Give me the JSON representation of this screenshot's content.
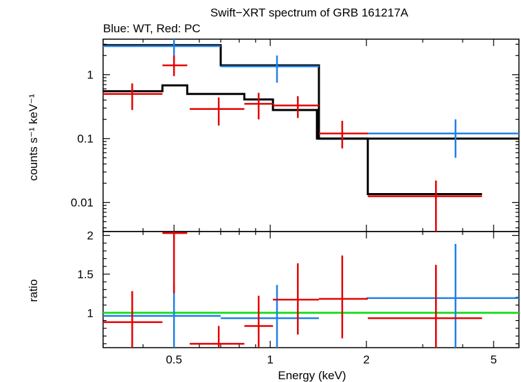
{
  "title": "Swift−XRT spectrum of GRB 161217A",
  "subtitle": "Blue: WT, Red: PC",
  "colors": {
    "wt": "#1f7fe6",
    "pc": "#e60000",
    "model": "#000000",
    "unity": "#22dd22",
    "frame": "#000000"
  },
  "chart_data": [
    {
      "type": "scatter",
      "panel": "spectrum",
      "ylabel": "counts s⁻¹ keV⁻¹",
      "xscale": "log",
      "yscale": "log",
      "xlim": [
        0.3,
        6.0
      ],
      "ylim": [
        0.0035,
        3.6
      ],
      "ytick_labels": [
        {
          "v": 0.01,
          "label": "0.01"
        },
        {
          "v": 0.1,
          "label": "0.1"
        },
        {
          "v": 1,
          "label": "1"
        }
      ],
      "series": [
        {
          "key": "wt",
          "points": [
            {
              "x": 0.5,
              "xlo": 0.3,
              "xhi": 0.7,
              "y": 2.8,
              "ylo": 1.8,
              "yhi": 4.0
            },
            {
              "x": 1.05,
              "xlo": 0.7,
              "xhi": 1.42,
              "y": 1.35,
              "ylo": 0.75,
              "yhi": 2.0
            },
            {
              "x": 3.8,
              "xlo": 2.0,
              "xhi": 6.0,
              "y": 0.12,
              "ylo": 0.05,
              "yhi": 0.2
            }
          ]
        },
        {
          "key": "pc",
          "points": [
            {
              "x": 0.37,
              "xlo": 0.3,
              "xhi": 0.46,
              "y": 0.5,
              "ylo": 0.28,
              "yhi": 0.73
            },
            {
              "x": 0.5,
              "xlo": 0.46,
              "xhi": 0.55,
              "y": 1.4,
              "ylo": 0.95,
              "yhi": 2.0
            },
            {
              "x": 0.69,
              "xlo": 0.56,
              "xhi": 0.83,
              "y": 0.29,
              "ylo": 0.16,
              "yhi": 0.44
            },
            {
              "x": 0.92,
              "xlo": 0.83,
              "xhi": 1.02,
              "y": 0.35,
              "ylo": 0.2,
              "yhi": 0.52
            },
            {
              "x": 1.22,
              "xlo": 1.02,
              "xhi": 1.42,
              "y": 0.33,
              "ylo": 0.21,
              "yhi": 0.46
            },
            {
              "x": 1.68,
              "xlo": 1.42,
              "xhi": 2.02,
              "y": 0.12,
              "ylo": 0.07,
              "yhi": 0.19
            },
            {
              "x": 3.3,
              "xlo": 2.02,
              "xhi": 4.6,
              "y": 0.0125,
              "ylo": 0.0035,
              "yhi": 0.022
            }
          ]
        }
      ],
      "models": [
        {
          "key": "wt",
          "steps": [
            [
              0.3,
              2.9
            ],
            [
              0.7,
              2.9
            ],
            [
              0.7,
              1.4
            ],
            [
              1.42,
              1.4
            ],
            [
              1.42,
              0.1
            ],
            [
              2.02,
              0.1
            ],
            [
              2.02,
              0.1
            ],
            [
              6.0,
              0.1
            ]
          ]
        },
        {
          "key": "pc",
          "steps": [
            [
              0.3,
              0.55
            ],
            [
              0.46,
              0.55
            ],
            [
              0.46,
              0.68
            ],
            [
              0.55,
              0.68
            ],
            [
              0.55,
              0.5
            ],
            [
              0.83,
              0.5
            ],
            [
              0.83,
              0.41
            ],
            [
              1.02,
              0.41
            ],
            [
              1.02,
              0.28
            ],
            [
              1.4,
              0.28
            ],
            [
              1.4,
              0.1
            ],
            [
              2.02,
              0.1
            ],
            [
              2.02,
              0.0135
            ],
            [
              4.6,
              0.0135
            ]
          ]
        }
      ]
    },
    {
      "type": "scatter",
      "panel": "ratio",
      "ylabel": "ratio",
      "xlabel": "Energy (keV)",
      "xscale": "log",
      "yscale": "linear",
      "xlim": [
        0.3,
        6.0
      ],
      "ylim": [
        0.55,
        2.05
      ],
      "xtick_labels": [
        {
          "v": 0.5,
          "label": "0.5"
        },
        {
          "v": 1,
          "label": "1"
        },
        {
          "v": 2,
          "label": "2"
        },
        {
          "v": 5,
          "label": "5"
        }
      ],
      "ytick_labels": [
        {
          "v": 1,
          "label": "1"
        },
        {
          "v": 1.5,
          "label": "1.5"
        },
        {
          "v": 2,
          "label": "2"
        }
      ],
      "unity": 1.0,
      "series": [
        {
          "key": "wt",
          "points": [
            {
              "x": 0.5,
              "xlo": 0.3,
              "xhi": 0.7,
              "y": 0.96,
              "ylo": 0.55,
              "yhi": 1.38
            },
            {
              "x": 1.05,
              "xlo": 0.7,
              "xhi": 1.42,
              "y": 0.93,
              "ylo": 0.55,
              "yhi": 1.36
            },
            {
              "x": 3.8,
              "xlo": 2.0,
              "xhi": 6.0,
              "y": 1.19,
              "ylo": 0.55,
              "yhi": 1.89
            }
          ]
        },
        {
          "key": "pc",
          "points": [
            {
              "x": 0.37,
              "xlo": 0.3,
              "xhi": 0.46,
              "y": 0.88,
              "ylo": 0.55,
              "yhi": 1.28
            },
            {
              "x": 0.5,
              "xlo": 0.46,
              "xhi": 0.55,
              "y": 2.03,
              "ylo": 1.25,
              "yhi": 2.05
            },
            {
              "x": 0.69,
              "xlo": 0.56,
              "xhi": 0.83,
              "y": 0.6,
              "ylo": 0.55,
              "yhi": 0.83
            },
            {
              "x": 0.92,
              "xlo": 0.83,
              "xhi": 1.02,
              "y": 0.83,
              "ylo": 0.55,
              "yhi": 1.22
            },
            {
              "x": 1.22,
              "xlo": 1.02,
              "xhi": 1.42,
              "y": 1.17,
              "ylo": 0.72,
              "yhi": 1.64
            },
            {
              "x": 1.68,
              "xlo": 1.42,
              "xhi": 2.02,
              "y": 1.18,
              "ylo": 0.67,
              "yhi": 1.74
            },
            {
              "x": 3.3,
              "xlo": 2.02,
              "xhi": 4.6,
              "y": 0.93,
              "ylo": 0.55,
              "yhi": 1.62
            }
          ]
        }
      ]
    }
  ]
}
